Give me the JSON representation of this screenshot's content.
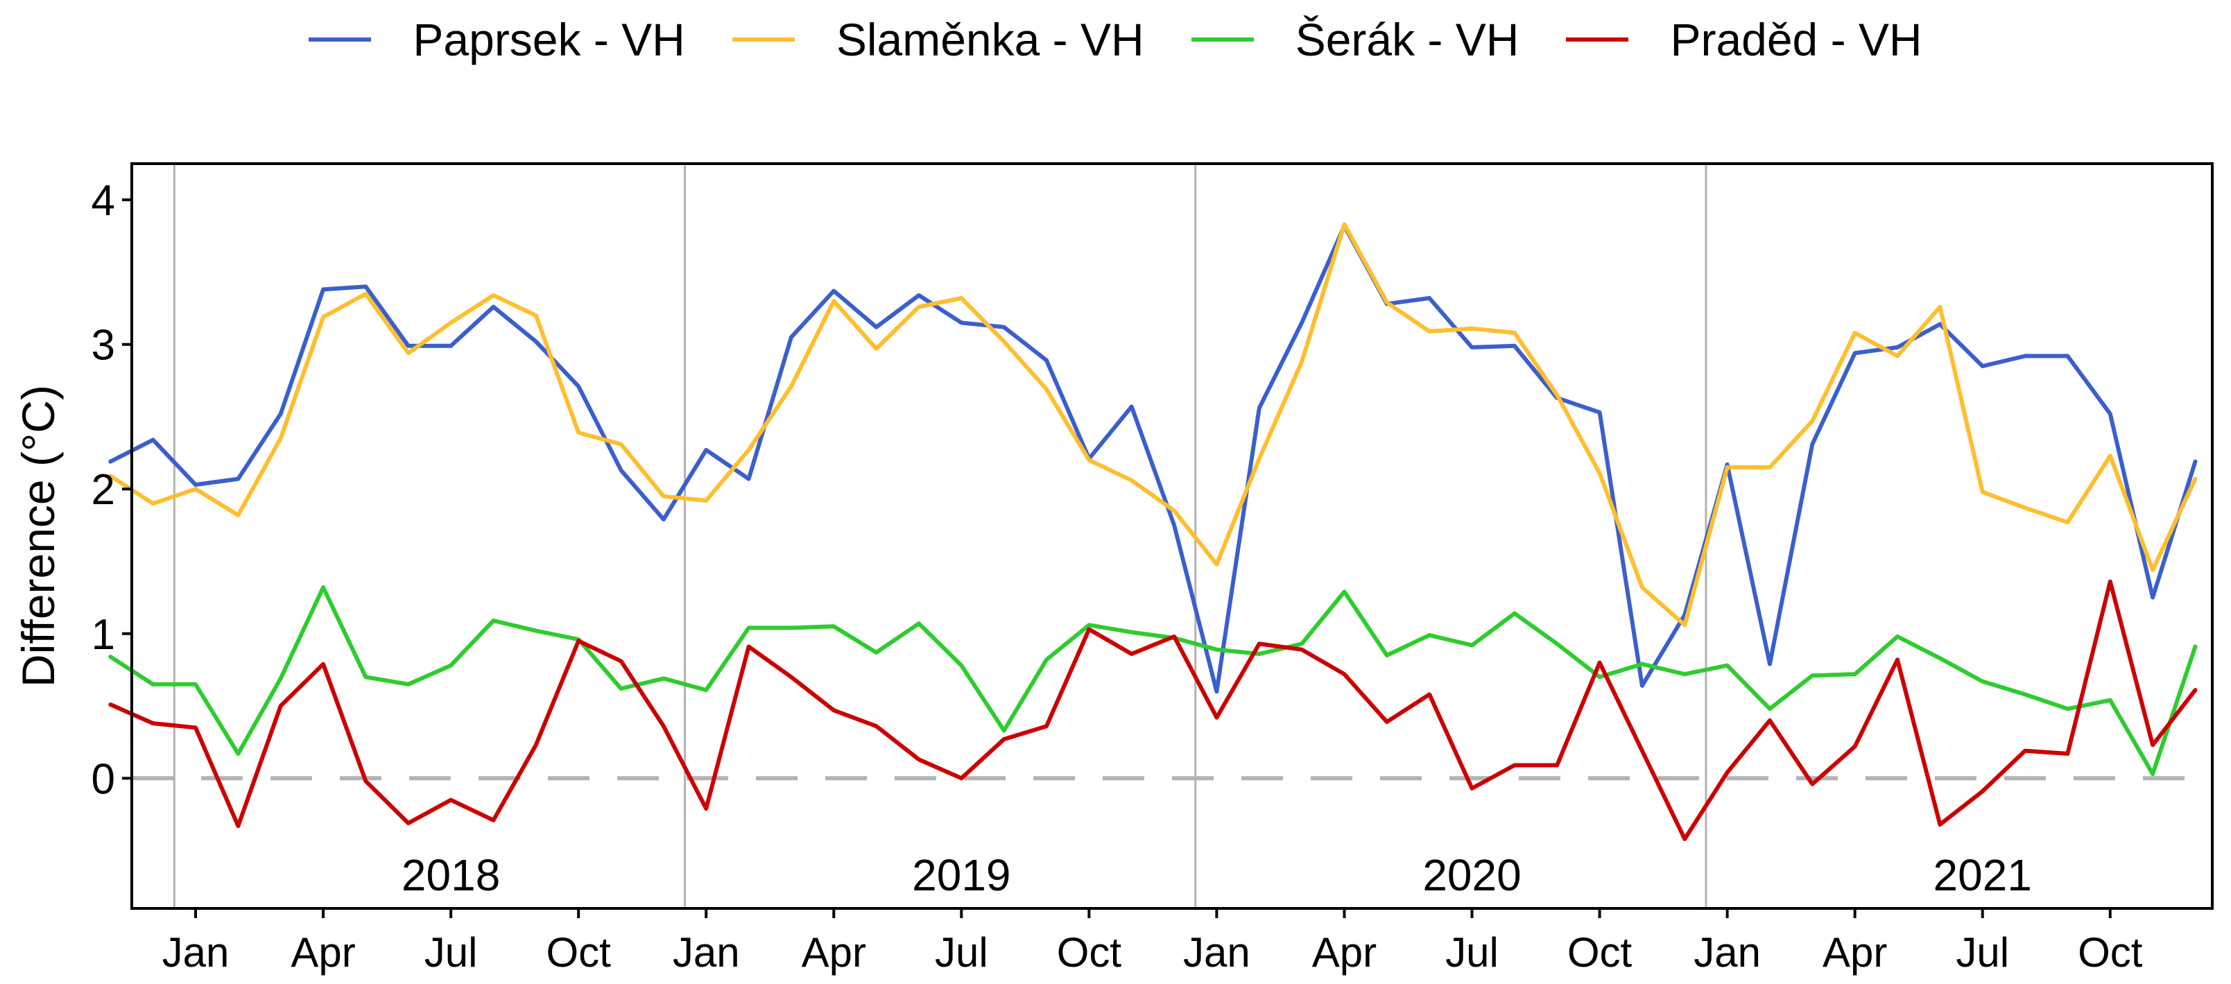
{
  "chart_data": {
    "type": "line",
    "title": "",
    "xlabel": "",
    "ylabel": "Difference (°C)",
    "ylim": [
      -0.9,
      4.25
    ],
    "yticks": [
      0,
      1,
      2,
      3,
      4
    ],
    "x_months_range": [
      -1.5,
      47.4
    ],
    "grid": false,
    "legend_position": "top",
    "reference_line": 0,
    "year_labels": [
      {
        "label": "2018",
        "month": 6
      },
      {
        "label": "2019",
        "month": 18
      },
      {
        "label": "2020",
        "month": 30
      },
      {
        "label": "2021",
        "month": 42
      }
    ],
    "year_separators_month": [
      -0.5,
      11.5,
      23.5,
      35.5
    ],
    "month_ticks": [
      {
        "label": "Jan",
        "month": 0
      },
      {
        "label": "Apr",
        "month": 3
      },
      {
        "label": "Jul",
        "month": 6
      },
      {
        "label": "Oct",
        "month": 9
      },
      {
        "label": "Jan",
        "month": 12
      },
      {
        "label": "Apr",
        "month": 15
      },
      {
        "label": "Jul",
        "month": 18
      },
      {
        "label": "Oct",
        "month": 21
      },
      {
        "label": "Jan",
        "month": 24
      },
      {
        "label": "Apr",
        "month": 27
      },
      {
        "label": "Jul",
        "month": 30
      },
      {
        "label": "Oct",
        "month": 33
      },
      {
        "label": "Jan",
        "month": 36
      },
      {
        "label": "Apr",
        "month": 39
      },
      {
        "label": "Jul",
        "month": 42
      },
      {
        "label": "Oct",
        "month": 45
      }
    ],
    "x_months": [
      -2,
      -1,
      0,
      1,
      2,
      3,
      4,
      5,
      6,
      7,
      8,
      9,
      10,
      11,
      12,
      13,
      14,
      15,
      16,
      17,
      18,
      19,
      20,
      21,
      22,
      23,
      24,
      25,
      26,
      27,
      28,
      29,
      30,
      31,
      32,
      33,
      34,
      35,
      36,
      37,
      38,
      39,
      40,
      41,
      42,
      43,
      44,
      45,
      46,
      47
    ],
    "series": [
      {
        "name": "Paprsek - VH",
        "color": "#3a5fcd",
        "values": [
          2.19,
          2.34,
          2.03,
          2.07,
          2.52,
          3.38,
          3.4,
          2.99,
          2.99,
          3.26,
          3.02,
          2.71,
          2.13,
          1.79,
          2.27,
          2.07,
          3.05,
          3.37,
          3.12,
          3.34,
          3.15,
          3.12,
          2.89,
          2.21,
          2.57,
          1.75,
          0.6,
          2.56,
          3.15,
          3.82,
          3.28,
          3.32,
          2.98,
          2.99,
          2.63,
          2.53,
          0.64,
          1.13,
          2.17,
          0.79,
          2.31,
          2.94,
          2.98,
          3.14,
          2.85,
          2.92,
          2.92,
          2.52,
          1.25,
          2.19
        ]
      },
      {
        "name": "Slaměnka - VH",
        "color": "#ffbe2e",
        "values": [
          2.09,
          1.9,
          2.0,
          1.82,
          2.35,
          3.19,
          3.35,
          2.94,
          3.15,
          3.34,
          3.2,
          2.39,
          2.31,
          1.95,
          1.92,
          2.27,
          2.71,
          3.3,
          2.97,
          3.26,
          3.32,
          3.02,
          2.69,
          2.2,
          2.06,
          1.85,
          1.48,
          2.21,
          2.88,
          3.83,
          3.29,
          3.09,
          3.11,
          3.08,
          2.65,
          2.11,
          1.32,
          1.06,
          2.15,
          2.15,
          2.47,
          3.08,
          2.92,
          3.26,
          1.98,
          1.87,
          1.77,
          2.23,
          1.44,
          2.07
        ]
      },
      {
        "name": "Šerák - VH",
        "color": "#2ecc2e",
        "values": [
          0.84,
          0.65,
          0.65,
          0.17,
          0.69,
          1.32,
          0.7,
          0.65,
          0.78,
          1.09,
          1.02,
          0.96,
          0.62,
          0.69,
          0.61,
          1.04,
          1.04,
          1.05,
          0.87,
          1.07,
          0.78,
          0.33,
          0.82,
          1.06,
          1.01,
          0.97,
          0.89,
          0.86,
          0.93,
          1.29,
          0.85,
          0.99,
          0.92,
          1.14,
          0.93,
          0.7,
          0.79,
          0.72,
          0.78,
          0.48,
          0.71,
          0.72,
          0.98,
          0.83,
          0.67,
          0.58,
          0.48,
          0.54,
          0.03,
          0.91
        ]
      },
      {
        "name": "Praděd - VH",
        "color": "#cc0000",
        "values": [
          0.51,
          0.38,
          0.35,
          -0.33,
          0.5,
          0.79,
          -0.02,
          -0.31,
          -0.15,
          -0.29,
          0.23,
          0.95,
          0.81,
          0.36,
          -0.21,
          0.91,
          0.7,
          0.47,
          0.36,
          0.13,
          0.0,
          0.27,
          0.36,
          1.03,
          0.86,
          0.98,
          0.42,
          0.93,
          0.89,
          0.72,
          0.39,
          0.58,
          -0.07,
          0.09,
          0.09,
          0.8,
          0.19,
          -0.42,
          0.04,
          0.4,
          -0.04,
          0.22,
          0.82,
          -0.32,
          -0.09,
          0.19,
          0.17,
          1.36,
          0.23,
          0.61
        ]
      }
    ]
  }
}
